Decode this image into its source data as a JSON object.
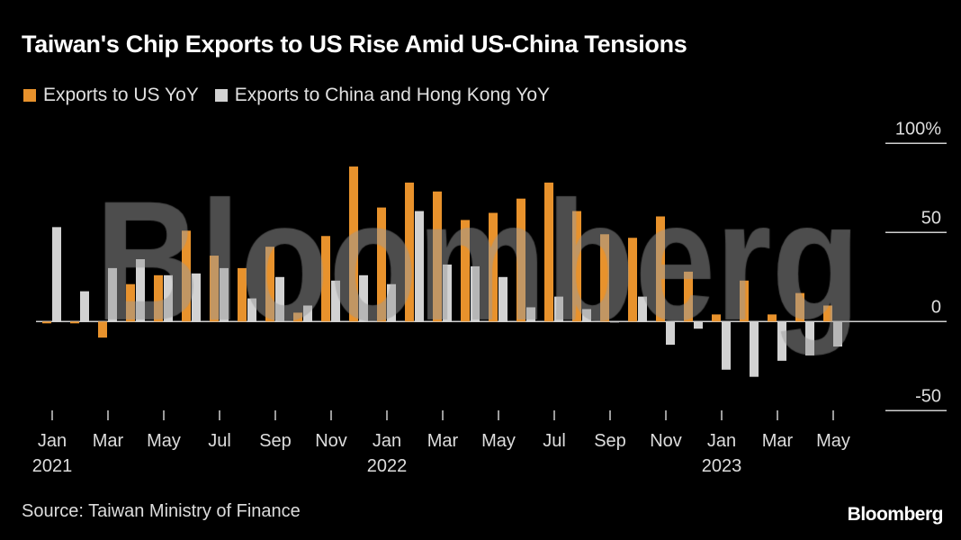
{
  "title": "Taiwan's Chip Exports to US Rise Amid US-China Tensions",
  "source": "Source: Taiwan Ministry of Finance",
  "logo": "Bloomberg",
  "watermark": "Bloomberg",
  "colors": {
    "us": "#e8922c",
    "china": "#d2d2d2",
    "background": "#000000"
  },
  "chart_data": {
    "type": "bar",
    "title": "Taiwan's Chip Exports to US Rise Amid US-China Tensions",
    "xlabel": "",
    "ylabel": "",
    "ylim": [
      -50,
      100
    ],
    "y_ticks": [
      {
        "value": 100,
        "label": "100%"
      },
      {
        "value": 50,
        "label": "50"
      },
      {
        "value": 0,
        "label": "0"
      },
      {
        "value": -50,
        "label": "-50"
      }
    ],
    "legend_position": "top-left",
    "grid": false,
    "categories": [
      "2021-01",
      "2021-02",
      "2021-03",
      "2021-04",
      "2021-05",
      "2021-06",
      "2021-07",
      "2021-08",
      "2021-09",
      "2021-10",
      "2021-11",
      "2021-12",
      "2022-01",
      "2022-02",
      "2022-03",
      "2022-04",
      "2022-05",
      "2022-06",
      "2022-07",
      "2022-08",
      "2022-09",
      "2022-10",
      "2022-11",
      "2022-12",
      "2023-01",
      "2023-02",
      "2023-03",
      "2023-04",
      "2023-05"
    ],
    "x_tick_labels": [
      {
        "index": 0,
        "month": "Jan",
        "year": "2021"
      },
      {
        "index": 2,
        "month": "Mar",
        "year": ""
      },
      {
        "index": 4,
        "month": "May",
        "year": ""
      },
      {
        "index": 6,
        "month": "Jul",
        "year": ""
      },
      {
        "index": 8,
        "month": "Sep",
        "year": ""
      },
      {
        "index": 10,
        "month": "Nov",
        "year": ""
      },
      {
        "index": 12,
        "month": "Jan",
        "year": "2022"
      },
      {
        "index": 14,
        "month": "Mar",
        "year": ""
      },
      {
        "index": 16,
        "month": "May",
        "year": ""
      },
      {
        "index": 18,
        "month": "Jul",
        "year": ""
      },
      {
        "index": 20,
        "month": "Sep",
        "year": ""
      },
      {
        "index": 22,
        "month": "Nov",
        "year": ""
      },
      {
        "index": 24,
        "month": "Jan",
        "year": "2023"
      },
      {
        "index": 26,
        "month": "Mar",
        "year": ""
      },
      {
        "index": 28,
        "month": "May",
        "year": ""
      }
    ],
    "series": [
      {
        "name": "Exports to US YoY",
        "color": "#e8922c",
        "values": [
          -1,
          -1,
          -9,
          21,
          26,
          51,
          37,
          30,
          42,
          5,
          48,
          87,
          64,
          78,
          73,
          57,
          61,
          69,
          78,
          62,
          49,
          47,
          59,
          28,
          4,
          23,
          4,
          16,
          9
        ]
      },
      {
        "name": "Exports to China and Hong Kong YoY",
        "color": "#d2d2d2",
        "values": [
          53,
          17,
          30,
          35,
          26,
          27,
          30,
          13,
          25,
          9,
          23,
          26,
          21,
          62,
          32,
          31,
          25,
          8,
          14,
          7,
          0,
          14,
          -13,
          -4,
          -27,
          -31,
          -22,
          -19,
          -14
        ]
      }
    ]
  }
}
